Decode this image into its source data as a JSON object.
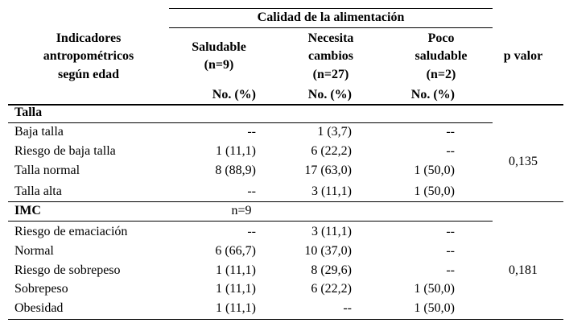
{
  "table": {
    "group_header": "Calidad de la alimentación",
    "row_header": [
      "Indicadores",
      "antropométricos",
      "según edad"
    ],
    "columns": [
      [
        "Saludable",
        "(n=9)"
      ],
      [
        "Necesita",
        "cambios",
        "(n=27)"
      ],
      [
        "Poco",
        "saludable",
        "(n=2)"
      ]
    ],
    "p_header": "p valor",
    "units": [
      "No. (%)",
      "No. (%)",
      "No. (%)"
    ],
    "sections": [
      {
        "title": "Talla",
        "note": null,
        "p_value": "0,135",
        "rows": [
          [
            "Baja talla",
            "--",
            "1 (3,7)",
            "--"
          ],
          [
            "Riesgo de baja talla",
            "1 (11,1)",
            "6 (22,2)",
            "--"
          ],
          [
            "Talla normal",
            "8 (88,9)",
            "17 (63,0)",
            "1 (50,0)"
          ],
          [
            "Talla alta",
            "--",
            "3 (11,1)",
            "1 (50,0)"
          ]
        ]
      },
      {
        "title": "IMC",
        "note": "n=9",
        "p_value": "0,181",
        "rows": [
          [
            "Riesgo de emaciación",
            "--",
            "3 (11,1)",
            "--"
          ],
          [
            "Normal",
            "6 (66,7)",
            "10 (37,0)",
            "--"
          ],
          [
            "Riesgo de sobrepeso",
            "1 (11,1)",
            "8 (29,6)",
            "--"
          ],
          [
            "Sobrepeso",
            "1 (11,1)",
            "6 (22,2)",
            "1 (50,0)"
          ],
          [
            "Obesidad",
            "1 (11,1)",
            "--",
            "1 (50,0)"
          ]
        ]
      }
    ]
  }
}
